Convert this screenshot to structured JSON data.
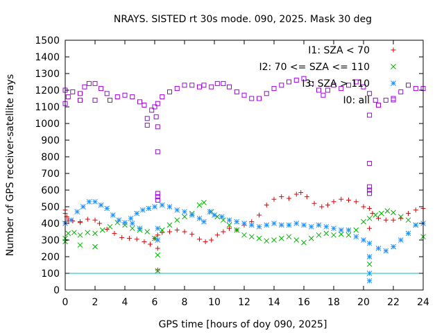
{
  "chart_data": {
    "type": "scatter",
    "title": "NRAYS. SISTED rt 30s mode. 090, 2025. Mask 30 deg",
    "xlabel": "GPS time [hours of doy 090, 2025]",
    "ylabel": "Number of GPS receiver-satellite rays",
    "xlim": [
      0,
      24
    ],
    "ylim": [
      0,
      1500
    ],
    "xticks": [
      "0",
      "2",
      "4",
      "6",
      "8",
      "10",
      "12",
      "14",
      "16",
      "18",
      "20",
      "22",
      "24"
    ],
    "yticks": [
      "0",
      "100",
      "200",
      "300",
      "400",
      "500",
      "600",
      "700",
      "800",
      "900",
      "1000",
      "1100",
      "1200",
      "1300",
      "1400",
      "1500"
    ],
    "grid": false,
    "legend_position": "top-right",
    "reference_line": {
      "y": 100,
      "color": "#00c0c0"
    },
    "series": [
      {
        "name": "I1: SZA < 70",
        "marker": "+",
        "color": "#e00000",
        "points": [
          [
            0,
            480
          ],
          [
            0,
            460
          ],
          [
            0.1,
            440
          ],
          [
            0.2,
            420
          ],
          [
            0.5,
            415
          ],
          [
            1,
            410
          ],
          [
            1.5,
            425
          ],
          [
            2,
            420
          ],
          [
            2.3,
            400
          ],
          [
            2.8,
            365
          ],
          [
            3.3,
            340
          ],
          [
            3.8,
            315
          ],
          [
            4.3,
            310
          ],
          [
            4.8,
            305
          ],
          [
            5.3,
            290
          ],
          [
            5.7,
            275
          ],
          [
            6,
            310
          ],
          [
            6.2,
            330
          ],
          [
            6.5,
            345
          ],
          [
            7,
            350
          ],
          [
            7.5,
            360
          ],
          [
            8,
            350
          ],
          [
            8.5,
            335
          ],
          [
            9,
            305
          ],
          [
            9.4,
            290
          ],
          [
            9.8,
            300
          ],
          [
            10.2,
            330
          ],
          [
            10.6,
            350
          ],
          [
            11,
            370
          ],
          [
            11.5,
            360
          ],
          [
            12,
            390
          ],
          [
            12.5,
            410
          ],
          [
            13,
            450
          ],
          [
            13.5,
            510
          ],
          [
            14,
            545
          ],
          [
            14.5,
            560
          ],
          [
            15,
            550
          ],
          [
            15.5,
            575
          ],
          [
            15.8,
            585
          ],
          [
            16.2,
            560
          ],
          [
            16.7,
            520
          ],
          [
            17.2,
            500
          ],
          [
            17.6,
            510
          ],
          [
            18,
            530
          ],
          [
            18.5,
            545
          ],
          [
            19,
            540
          ],
          [
            19.5,
            530
          ],
          [
            20,
            500
          ],
          [
            20.4,
            490
          ],
          [
            20.6,
            460
          ],
          [
            21,
            430
          ],
          [
            21.5,
            420
          ],
          [
            22,
            420
          ],
          [
            22.5,
            430
          ],
          [
            23,
            460
          ],
          [
            23.5,
            480
          ],
          [
            24,
            490
          ],
          [
            6.2,
            250
          ],
          [
            6.2,
            120
          ],
          [
            20.4,
            370
          ],
          [
            0,
            410
          ],
          [
            1,
            405
          ]
        ]
      },
      {
        "name": "I2: 70 <= SZA <= 110",
        "marker": "x",
        "color": "#00b000",
        "points": [
          [
            0,
            290
          ],
          [
            0,
            310
          ],
          [
            0.2,
            340
          ],
          [
            0.6,
            345
          ],
          [
            1,
            330
          ],
          [
            1.5,
            345
          ],
          [
            2,
            340
          ],
          [
            2.5,
            360
          ],
          [
            3,
            380
          ],
          [
            3.5,
            405
          ],
          [
            4,
            390
          ],
          [
            4.5,
            370
          ],
          [
            5,
            360
          ],
          [
            5.5,
            350
          ],
          [
            6,
            310
          ],
          [
            6.2,
            210
          ],
          [
            6.2,
            115
          ],
          [
            6.5,
            360
          ],
          [
            7,
            390
          ],
          [
            7.5,
            420
          ],
          [
            8,
            440
          ],
          [
            8.5,
            460
          ],
          [
            9,
            510
          ],
          [
            9.3,
            525
          ],
          [
            9.8,
            470
          ],
          [
            10.2,
            440
          ],
          [
            10.6,
            420
          ],
          [
            11,
            390
          ],
          [
            11.5,
            360
          ],
          [
            12,
            330
          ],
          [
            12.5,
            320
          ],
          [
            13,
            310
          ],
          [
            13.5,
            295
          ],
          [
            14,
            300
          ],
          [
            14.5,
            310
          ],
          [
            15,
            320
          ],
          [
            15.5,
            300
          ],
          [
            16,
            285
          ],
          [
            16.5,
            310
          ],
          [
            17,
            330
          ],
          [
            17.5,
            340
          ],
          [
            18,
            330
          ],
          [
            18.5,
            335
          ],
          [
            19,
            330
          ],
          [
            19.5,
            360
          ],
          [
            20,
            410
          ],
          [
            20.4,
            430
          ],
          [
            20.4,
            155
          ],
          [
            20.8,
            450
          ],
          [
            21.2,
            460
          ],
          [
            21.6,
            475
          ],
          [
            22,
            465
          ],
          [
            22.5,
            440
          ],
          [
            23,
            420
          ],
          [
            23.5,
            390
          ],
          [
            24,
            320
          ],
          [
            1,
            270
          ],
          [
            2,
            260
          ]
        ]
      },
      {
        "name": "I3: SZA > 110",
        "marker": "*",
        "color": "#1e90ff",
        "points": [
          [
            0,
            400
          ],
          [
            0.4,
            420
          ],
          [
            0.8,
            470
          ],
          [
            1.2,
            500
          ],
          [
            1.6,
            530
          ],
          [
            2,
            530
          ],
          [
            2.4,
            510
          ],
          [
            2.8,
            490
          ],
          [
            3.2,
            450
          ],
          [
            3.6,
            420
          ],
          [
            4,
            405
          ],
          [
            4.4,
            430
          ],
          [
            4.8,
            460
          ],
          [
            5.2,
            480
          ],
          [
            5.6,
            490
          ],
          [
            6,
            500
          ],
          [
            6.2,
            370
          ],
          [
            6.2,
            300
          ],
          [
            6.5,
            510
          ],
          [
            7,
            500
          ],
          [
            7.5,
            480
          ],
          [
            8,
            470
          ],
          [
            8.5,
            450
          ],
          [
            9,
            430
          ],
          [
            9.3,
            410
          ],
          [
            9.7,
            470
          ],
          [
            10,
            450
          ],
          [
            10.5,
            440
          ],
          [
            11,
            420
          ],
          [
            11.5,
            410
          ],
          [
            12,
            400
          ],
          [
            12.5,
            390
          ],
          [
            13,
            380
          ],
          [
            13.5,
            390
          ],
          [
            14,
            400
          ],
          [
            14.5,
            390
          ],
          [
            15,
            390
          ],
          [
            15.5,
            400
          ],
          [
            16,
            390
          ],
          [
            16.5,
            380
          ],
          [
            17,
            390
          ],
          [
            17.5,
            380
          ],
          [
            18,
            370
          ],
          [
            18.5,
            360
          ],
          [
            19,
            360
          ],
          [
            19.5,
            320
          ],
          [
            20,
            300
          ],
          [
            20.4,
            280
          ],
          [
            20.4,
            200
          ],
          [
            20.4,
            100
          ],
          [
            20.4,
            55
          ],
          [
            21,
            250
          ],
          [
            21.5,
            235
          ],
          [
            22,
            260
          ],
          [
            22.5,
            300
          ],
          [
            23,
            340
          ],
          [
            23.5,
            390
          ],
          [
            24,
            400
          ],
          [
            4.5,
            400
          ],
          [
            5,
            370
          ]
        ]
      },
      {
        "name": "I0: all",
        "marker": "square",
        "color": "#a000e0",
        "points": [
          [
            0,
            1200
          ],
          [
            0,
            1120
          ],
          [
            0.2,
            1160
          ],
          [
            0.5,
            1190
          ],
          [
            1,
            1180
          ],
          [
            1,
            1140
          ],
          [
            1.3,
            1220
          ],
          [
            1.6,
            1240
          ],
          [
            2,
            1240
          ],
          [
            2,
            1140
          ],
          [
            2.4,
            1210
          ],
          [
            2.8,
            1180
          ],
          [
            3,
            1140
          ],
          [
            3.5,
            1160
          ],
          [
            4,
            1170
          ],
          [
            4.5,
            1160
          ],
          [
            5,
            1130
          ],
          [
            5.3,
            1110
          ],
          [
            5.5,
            1030
          ],
          [
            5.5,
            990
          ],
          [
            5.8,
            1080
          ],
          [
            6,
            1100
          ],
          [
            6.1,
            1040
          ],
          [
            6.2,
            1120
          ],
          [
            6.2,
            980
          ],
          [
            6.2,
            830
          ],
          [
            6.2,
            580
          ],
          [
            6.2,
            560
          ],
          [
            6.2,
            540
          ],
          [
            6.5,
            1160
          ],
          [
            7,
            1190
          ],
          [
            7.5,
            1210
          ],
          [
            8,
            1230
          ],
          [
            8.5,
            1230
          ],
          [
            9,
            1220
          ],
          [
            9.3,
            1230
          ],
          [
            9.8,
            1220
          ],
          [
            10.2,
            1240
          ],
          [
            10.6,
            1240
          ],
          [
            11,
            1220
          ],
          [
            11.5,
            1190
          ],
          [
            12,
            1170
          ],
          [
            12.5,
            1150
          ],
          [
            13,
            1150
          ],
          [
            13.5,
            1180
          ],
          [
            14,
            1210
          ],
          [
            14.5,
            1230
          ],
          [
            15,
            1250
          ],
          [
            15.5,
            1260
          ],
          [
            16,
            1270
          ],
          [
            16.5,
            1240
          ],
          [
            17,
            1200
          ],
          [
            17.3,
            1170
          ],
          [
            17.6,
            1200
          ],
          [
            18,
            1230
          ],
          [
            18.5,
            1210
          ],
          [
            19,
            1230
          ],
          [
            19.5,
            1250
          ],
          [
            20,
            1220
          ],
          [
            20.4,
            1180
          ],
          [
            20.4,
            1050
          ],
          [
            20.4,
            760
          ],
          [
            20.4,
            620
          ],
          [
            20.4,
            600
          ],
          [
            20.4,
            580
          ],
          [
            20.8,
            1140
          ],
          [
            21,
            1110
          ],
          [
            21.5,
            1140
          ],
          [
            22,
            1150
          ],
          [
            22.5,
            1190
          ],
          [
            23,
            1230
          ],
          [
            23.5,
            1210
          ],
          [
            24,
            1210
          ]
        ]
      }
    ]
  }
}
